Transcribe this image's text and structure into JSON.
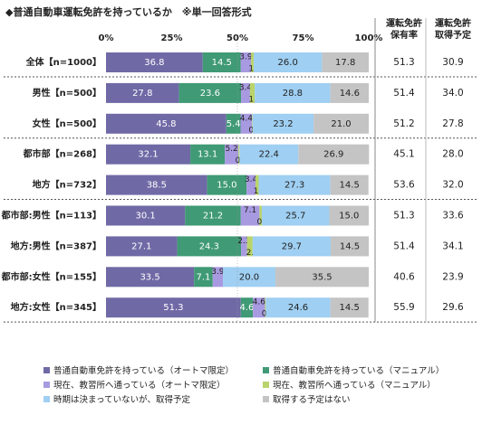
{
  "title": "◆普通自動車運転免許を持っているか　※単一回答形式",
  "col_headers": [
    {
      "line1": "運転免許",
      "line2": "保有率"
    },
    {
      "line1": "運転免許",
      "line2": "取得予定"
    }
  ],
  "chart_data": {
    "type": "bar",
    "orientation": "horizontal",
    "stacked": "percent",
    "ticks": [
      "0%",
      "25%",
      "50%",
      "75%",
      "100%"
    ],
    "xlim": [
      0,
      100
    ],
    "categories": [
      "全体【n=1000】",
      "男性【n=500】",
      "女性【n=500】",
      "都市部【n=268】",
      "地方【n=732】",
      "都市部:男性【n=113】",
      "地方:男性【n=387】",
      "都市部:女性【n=155】",
      "地方:女性【n=345】"
    ],
    "series": [
      {
        "name": "普通自動車免許を持っている（オートマ限定）",
        "color": "#6f6aa6",
        "values": [
          36.8,
          27.8,
          45.8,
          32.1,
          38.5,
          30.1,
          27.1,
          33.5,
          51.3
        ]
      },
      {
        "name": "普通自動車免許を持っている（マニュアル）",
        "color": "#3f9a75",
        "values": [
          14.5,
          23.6,
          5.4,
          13.1,
          15.0,
          21.2,
          24.3,
          7.1,
          4.6
        ]
      },
      {
        "name": "現在、教習所へ通っている（オートマ限定）",
        "color": "#a89ae0",
        "values": [
          3.9,
          3.4,
          4.4,
          5.2,
          3.4,
          7.1,
          2.3,
          3.9,
          4.6
        ]
      },
      {
        "name": "現在、教習所へ通っている（マニュアル）",
        "color": "#b9d46a",
        "values": [
          1.0,
          1.8,
          0.2,
          0.4,
          1.2,
          0.9,
          2.1,
          0.0,
          0.3
        ]
      },
      {
        "name": "時期は決まっていないが、取得予定",
        "color": "#9fcff2",
        "values": [
          26.0,
          28.8,
          23.2,
          22.4,
          27.3,
          25.7,
          29.7,
          20.0,
          24.6
        ]
      },
      {
        "name": "取得する予定はない",
        "color": "#c4c4c4",
        "values": [
          17.8,
          14.6,
          21.0,
          26.9,
          14.5,
          15.0,
          14.5,
          35.5,
          14.5
        ]
      }
    ],
    "side_values": {
      "holding_rate": [
        51.3,
        51.4,
        51.2,
        45.1,
        53.6,
        51.3,
        51.4,
        40.6,
        55.9
      ],
      "plan_to_obtain": [
        30.9,
        34.0,
        27.8,
        28.0,
        32.0,
        33.6,
        34.1,
        23.9,
        29.6
      ]
    },
    "label_offsets": {
      "2": [
        [
          0,
          0,
          0,
          0,
          0,
          0,
          0,
          0,
          0
        ]
      ],
      "3": [
        [
          0,
          0,
          0,
          0,
          0,
          0,
          0,
          0,
          0
        ]
      ]
    },
    "group_separators_after": [
      0,
      2,
      4
    ]
  }
}
